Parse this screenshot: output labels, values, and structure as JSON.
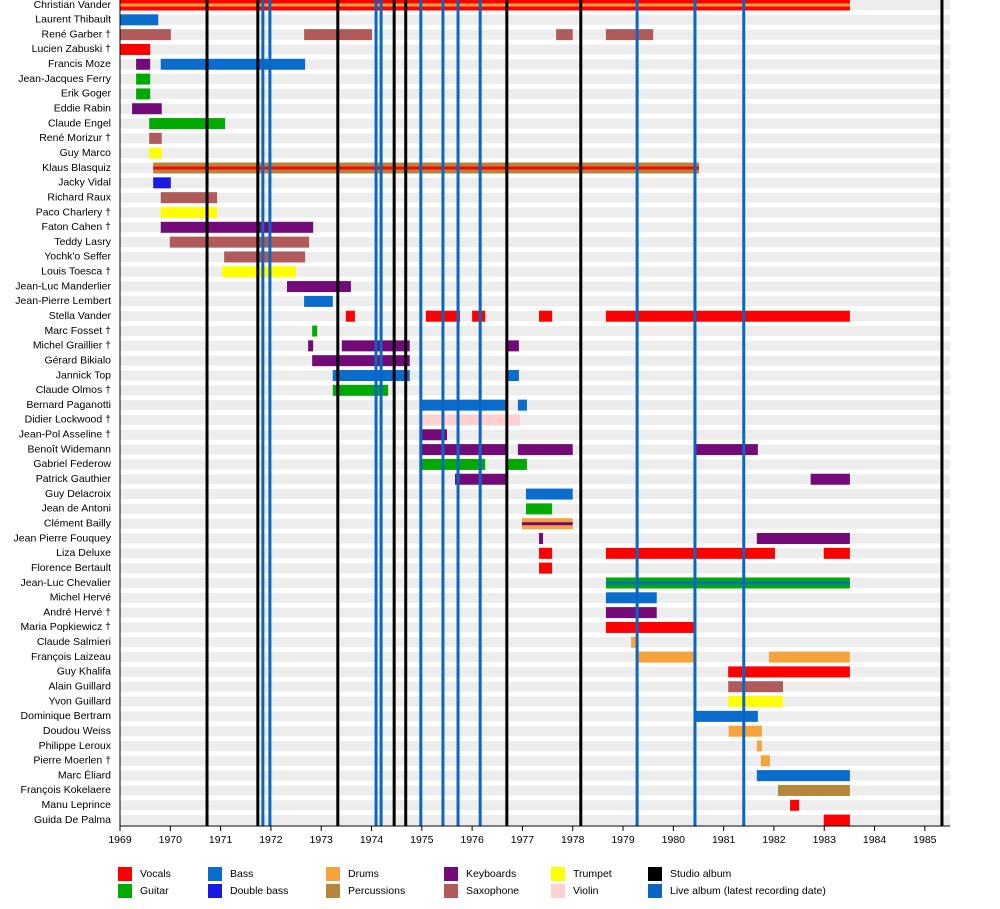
{
  "chart_data": {
    "type": "timeline",
    "xlim": [
      1969,
      1985.5
    ],
    "xticks": [
      1969,
      1970,
      1971,
      1972,
      1973,
      1974,
      1975,
      1976,
      1977,
      1978,
      1979,
      1980,
      1981,
      1982,
      1983,
      1984,
      1985
    ],
    "roles": [
      {
        "name": "Vocals",
        "color": "#ff0000"
      },
      {
        "name": "Guitar",
        "color": "#00aa00"
      },
      {
        "name": "Bass",
        "color": "#0a6ccc"
      },
      {
        "name": "Double bass",
        "color": "#1a1ae0"
      },
      {
        "name": "Drums",
        "color": "#f7a33c"
      },
      {
        "name": "Percussions",
        "color": "#b5873c"
      },
      {
        "name": "Keyboards",
        "color": "#720a78"
      },
      {
        "name": "Saxophone",
        "color": "#b05a5a"
      },
      {
        "name": "Trumpet",
        "color": "#ffff00"
      },
      {
        "name": "Violin",
        "color": "#ffd0d0"
      }
    ],
    "events": [
      {
        "name": "Studio album",
        "color": "#000000",
        "x": [
          1970.73,
          1971.74,
          1973.33,
          1974.45,
          1974.68,
          1976.69,
          1978.16,
          1985.34
        ]
      },
      {
        "name": "Live album (latest recording date)",
        "color": "#0a66c4",
        "x": [
          1971.84,
          1971.98,
          1974.09,
          1974.19,
          1974.98,
          1975.42,
          1975.72,
          1976.16,
          1979.28,
          1980.43,
          1981.4
        ]
      }
    ],
    "members": [
      {
        "name": "Christian Vander",
        "bars": [
          {
            "role": "Vocals",
            "stripe": "Drums",
            "from": 1969.0,
            "to": 1983.51
          }
        ]
      },
      {
        "name": "Laurent Thibault",
        "bars": [
          {
            "role": "Bass",
            "from": 1969.0,
            "to": 1969.76
          }
        ]
      },
      {
        "name": "René Garber †",
        "bars": [
          {
            "role": "Saxophone",
            "from": 1969.0,
            "to": 1970.01
          },
          {
            "role": "Saxophone",
            "from": 1972.66,
            "to": 1974.01
          },
          {
            "role": "Saxophone",
            "from": 1977.67,
            "to": 1978.0
          },
          {
            "role": "Saxophone",
            "from": 1978.66,
            "to": 1979.6
          }
        ]
      },
      {
        "name": "Lucien Zabuski †",
        "bars": [
          {
            "role": "Vocals",
            "from": 1969.0,
            "to": 1969.6
          }
        ]
      },
      {
        "name": "Francis Moze",
        "bars": [
          {
            "role": "Keyboards",
            "from": 1969.32,
            "to": 1969.6
          },
          {
            "role": "Bass",
            "from": 1969.81,
            "to": 1972.68
          }
        ]
      },
      {
        "name": "Jean-Jacques Ferry",
        "bars": [
          {
            "role": "Guitar",
            "from": 1969.32,
            "to": 1969.6
          }
        ]
      },
      {
        "name": "Erik Goger",
        "bars": [
          {
            "role": "Guitar",
            "from": 1969.32,
            "to": 1969.6
          }
        ]
      },
      {
        "name": "Eddie Rabin",
        "bars": [
          {
            "role": "Keyboards",
            "from": 1969.24,
            "to": 1969.83
          }
        ]
      },
      {
        "name": "Claude Engel",
        "bars": [
          {
            "role": "Guitar",
            "from": 1969.58,
            "to": 1971.09
          }
        ]
      },
      {
        "name": "René Morizur †",
        "bars": [
          {
            "role": "Saxophone",
            "from": 1969.58,
            "to": 1969.83
          }
        ]
      },
      {
        "name": "Guy Marco",
        "bars": [
          {
            "role": "Trumpet",
            "from": 1969.58,
            "to": 1969.83
          }
        ]
      },
      {
        "name": "Klaus Blasquiz",
        "bars": [
          {
            "role": "Percussions",
            "stripe": "Vocals",
            "from": 1969.66,
            "to": 1980.51
          }
        ]
      },
      {
        "name": "Jacky Vidal",
        "bars": [
          {
            "role": "Double bass",
            "from": 1969.66,
            "to": 1970.01
          }
        ]
      },
      {
        "name": "Richard Raux",
        "bars": [
          {
            "role": "Saxophone",
            "from": 1969.81,
            "to": 1970.93
          }
        ]
      },
      {
        "name": "Paco Charlery †",
        "bars": [
          {
            "role": "Trumpet",
            "from": 1969.81,
            "to": 1970.93
          }
        ]
      },
      {
        "name": "Faton Cahen †",
        "bars": [
          {
            "role": "Keyboards",
            "from": 1969.81,
            "to": 1972.84
          }
        ]
      },
      {
        "name": "Teddy Lasry",
        "bars": [
          {
            "role": "Saxophone",
            "from": 1969.99,
            "to": 1972.76
          }
        ]
      },
      {
        "name": "Yochk'o Seffer",
        "bars": [
          {
            "role": "Saxophone",
            "from": 1971.07,
            "to": 1972.68
          }
        ]
      },
      {
        "name": "Louis Toesca †",
        "bars": [
          {
            "role": "Trumpet",
            "from": 1971.03,
            "to": 1972.5
          }
        ]
      },
      {
        "name": "Jean-Luc Manderlier",
        "bars": [
          {
            "role": "Keyboards",
            "from": 1972.32,
            "to": 1973.59
          }
        ]
      },
      {
        "name": "Jean-Pierre Lembert",
        "bars": [
          {
            "role": "Bass",
            "from": 1972.66,
            "to": 1973.23
          }
        ]
      },
      {
        "name": "Stella Vander",
        "bars": [
          {
            "role": "Vocals",
            "from": 1973.49,
            "to": 1973.67
          },
          {
            "role": "Vocals",
            "from": 1975.08,
            "to": 1975.76
          },
          {
            "role": "Vocals",
            "from": 1976.0,
            "to": 1976.26
          },
          {
            "role": "Vocals",
            "from": 1977.33,
            "to": 1977.59
          },
          {
            "role": "Vocals",
            "from": 1978.66,
            "to": 1983.51
          }
        ]
      },
      {
        "name": "Marc Fosset †",
        "bars": [
          {
            "role": "Guitar",
            "from": 1972.82,
            "to": 1972.92
          }
        ]
      },
      {
        "name": "Michel Graillier †",
        "bars": [
          {
            "role": "Keyboards",
            "from": 1972.74,
            "to": 1972.84
          },
          {
            "role": "Keyboards",
            "from": 1973.41,
            "to": 1974.76
          },
          {
            "role": "Keyboards",
            "from": 1976.71,
            "to": 1976.93
          }
        ]
      },
      {
        "name": "Gérard Bikialo",
        "bars": [
          {
            "role": "Keyboards",
            "from": 1972.82,
            "to": 1974.76
          }
        ]
      },
      {
        "name": "Jannick Top",
        "bars": [
          {
            "role": "Bass",
            "from": 1973.23,
            "to": 1974.76
          },
          {
            "role": "Bass",
            "from": 1976.71,
            "to": 1976.93
          }
        ]
      },
      {
        "name": "Claude Olmos †",
        "bars": [
          {
            "role": "Guitar",
            "from": 1973.23,
            "to": 1974.33
          }
        ]
      },
      {
        "name": "Bernard Paganotti",
        "bars": [
          {
            "role": "Bass",
            "from": 1974.98,
            "to": 1976.69
          },
          {
            "role": "Bass",
            "from": 1976.91,
            "to": 1977.09
          }
        ]
      },
      {
        "name": "Didier Lockwood †",
        "bars": [
          {
            "role": "Violin",
            "from": 1974.98,
            "to": 1976.95
          }
        ]
      },
      {
        "name": "Jean-Pol Asseline †",
        "bars": [
          {
            "role": "Keyboards",
            "from": 1974.98,
            "to": 1975.5
          }
        ]
      },
      {
        "name": "Benoît Widemann",
        "bars": [
          {
            "role": "Keyboards",
            "from": 1974.98,
            "to": 1976.69
          },
          {
            "role": "Keyboards",
            "from": 1976.91,
            "to": 1978.0
          },
          {
            "role": "Keyboards",
            "from": 1980.43,
            "to": 1981.68
          }
        ]
      },
      {
        "name": "Gabriel Federow",
        "bars": [
          {
            "role": "Guitar",
            "from": 1974.98,
            "to": 1976.26
          },
          {
            "role": "Guitar",
            "from": 1976.71,
            "to": 1977.09
          }
        ]
      },
      {
        "name": "Patrick Gauthier",
        "bars": [
          {
            "role": "Keyboards",
            "from": 1975.66,
            "to": 1976.69
          },
          {
            "role": "Keyboards",
            "from": 1982.73,
            "to": 1983.51
          }
        ]
      },
      {
        "name": "Guy Delacroix",
        "bars": [
          {
            "role": "Bass",
            "from": 1977.07,
            "to": 1978.0
          }
        ]
      },
      {
        "name": "Jean de Antoni",
        "bars": [
          {
            "role": "Guitar",
            "from": 1977.07,
            "to": 1977.59
          }
        ]
      },
      {
        "name": "Clément Bailly",
        "bars": [
          {
            "role": "Drums",
            "stripe": "Keyboards",
            "from": 1976.99,
            "to": 1978.0
          }
        ]
      },
      {
        "name": "Jean Pierre Fouquey",
        "bars": [
          {
            "role": "Keyboards",
            "from": 1977.33,
            "to": 1977.41
          },
          {
            "role": "Keyboards",
            "from": 1981.66,
            "to": 1983.51
          }
        ]
      },
      {
        "name": "Liza Deluxe",
        "bars": [
          {
            "role": "Vocals",
            "from": 1977.33,
            "to": 1977.59
          },
          {
            "role": "Vocals",
            "from": 1978.66,
            "to": 1982.02
          },
          {
            "role": "Vocals",
            "from": 1982.99,
            "to": 1983.51
          }
        ]
      },
      {
        "name": "Florence Bertault",
        "bars": [
          {
            "role": "Vocals",
            "from": 1977.33,
            "to": 1977.59
          }
        ]
      },
      {
        "name": "Jean-Luc Chevalier",
        "bars": [
          {
            "role": "Guitar",
            "stripe": "Bass",
            "from": 1978.66,
            "to": 1983.51
          }
        ]
      },
      {
        "name": "Michel Hervé",
        "bars": [
          {
            "role": "Bass",
            "from": 1978.66,
            "to": 1979.67
          }
        ]
      },
      {
        "name": "André Hervé †",
        "bars": [
          {
            "role": "Keyboards",
            "from": 1978.66,
            "to": 1979.67
          }
        ]
      },
      {
        "name": "Maria Popkiewicz †",
        "bars": [
          {
            "role": "Vocals",
            "from": 1978.66,
            "to": 1980.43
          }
        ]
      },
      {
        "name": "Claude Salmieri",
        "bars": [
          {
            "role": "Drums",
            "from": 1979.16,
            "to": 1979.26
          }
        ]
      },
      {
        "name": "François Laizeau",
        "bars": [
          {
            "role": "Drums",
            "from": 1979.26,
            "to": 1980.43
          },
          {
            "role": "Drums",
            "from": 1981.9,
            "to": 1983.51
          }
        ]
      },
      {
        "name": "Guy Khalifa",
        "bars": [
          {
            "role": "Vocals",
            "from": 1981.09,
            "to": 1983.51
          }
        ]
      },
      {
        "name": "Alain Guillard",
        "bars": [
          {
            "role": "Saxophone",
            "from": 1981.09,
            "to": 1982.18
          }
        ]
      },
      {
        "name": "Yvon Guillard",
        "bars": [
          {
            "role": "Trumpet",
            "from": 1981.09,
            "to": 1982.18
          }
        ]
      },
      {
        "name": "Dominique Bertram",
        "bars": [
          {
            "role": "Bass",
            "from": 1980.45,
            "to": 1981.68
          }
        ]
      },
      {
        "name": "Doudou Weiss",
        "bars": [
          {
            "role": "Drums",
            "from": 1981.1,
            "to": 1981.76
          }
        ]
      },
      {
        "name": "Philippe Leroux",
        "bars": [
          {
            "role": "Drums",
            "from": 1981.66,
            "to": 1981.76
          }
        ]
      },
      {
        "name": "Pierre Moerlen †",
        "bars": [
          {
            "role": "Drums",
            "from": 1981.74,
            "to": 1981.92
          }
        ]
      },
      {
        "name": "Marc Éliard",
        "bars": [
          {
            "role": "Bass",
            "from": 1981.66,
            "to": 1983.51
          }
        ]
      },
      {
        "name": "François Kokelaere",
        "bars": [
          {
            "role": "Percussions",
            "from": 1982.08,
            "to": 1983.51
          }
        ]
      },
      {
        "name": "Manu Leprince",
        "bars": [
          {
            "role": "Vocals",
            "from": 1982.32,
            "to": 1982.5
          }
        ]
      },
      {
        "name": "Guida De Palma",
        "bars": [
          {
            "role": "Vocals",
            "from": 1982.99,
            "to": 1983.51
          }
        ]
      }
    ]
  }
}
